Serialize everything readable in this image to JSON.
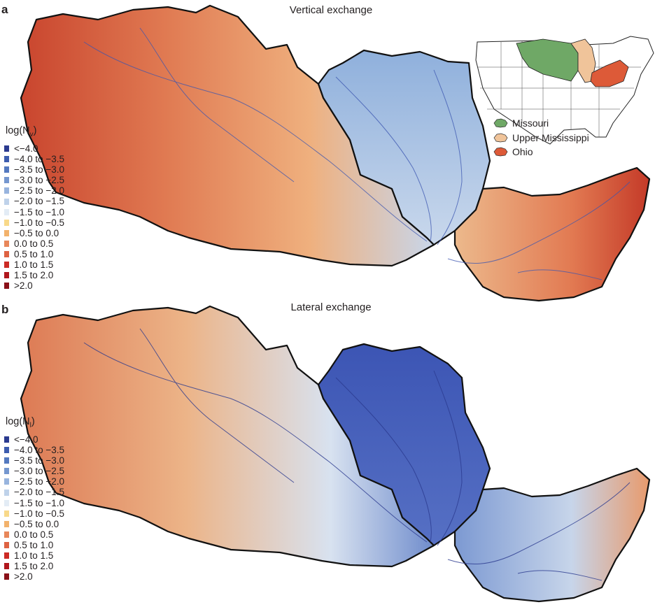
{
  "panel_a": {
    "letter": "a",
    "title": "Vertical exchange",
    "legend_title": "log(N",
    "legend_sub": "v",
    "legend_close": ")"
  },
  "panel_b": {
    "letter": "b",
    "title": "Lateral exchange",
    "legend_title": "log(N",
    "legend_sub": "l",
    "legend_close": ")"
  },
  "legend_items": [
    {
      "label": "<−4.0",
      "color": "#2b3a8f"
    },
    {
      "label": "−4.0 to −3.5",
      "color": "#3d5cae"
    },
    {
      "label": "−3.5 to −3.0",
      "color": "#5479bf"
    },
    {
      "label": "−3.0 to −2.5",
      "color": "#7597cf"
    },
    {
      "label": "−2.5 to −2.0",
      "color": "#98b4de"
    },
    {
      "label": "−2.0 to −1.5",
      "color": "#bfd2ea"
    },
    {
      "label": "−1.5 to −1.0",
      "color": "#e3ecf5"
    },
    {
      "label": "−1.0 to −0.5",
      "color": "#f8d98a"
    },
    {
      "label": "−0.5 to 0.0",
      "color": "#f2b26c"
    },
    {
      "label": "0.0 to 0.5",
      "color": "#e8875a"
    },
    {
      "label": "0.5 to 1.0",
      "color": "#de6242"
    },
    {
      "label": "1.0 to 1.5",
      "color": "#cc2a24"
    },
    {
      "label": "1.5 to 2.0",
      "color": "#b0161c"
    },
    {
      "label": ">2.0",
      "color": "#8a1018"
    }
  ],
  "basins": [
    {
      "name": "Missouri",
      "color": "#6fa866"
    },
    {
      "name": "Upper Mississippi",
      "color": "#f0c49a"
    },
    {
      "name": "Ohio",
      "color": "#dd5a38"
    }
  ],
  "map_colors": {
    "panel_a": {
      "missouri": "#e79a6c",
      "upper_mississippi": "#a9c3e2",
      "ohio": "#e98a5e"
    },
    "panel_b": {
      "missouri": "#ecb488",
      "upper_mississippi": "#4a66c0",
      "ohio": "#8aa8d8"
    }
  }
}
